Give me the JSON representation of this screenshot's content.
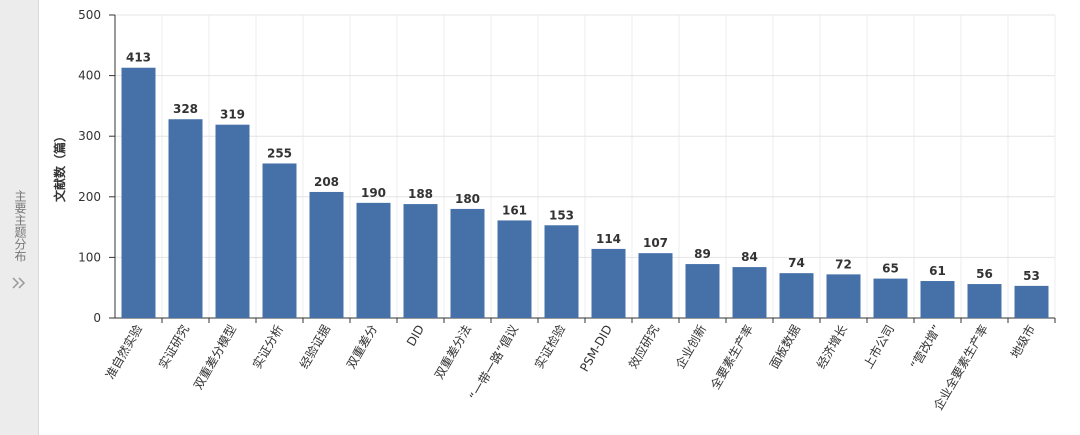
{
  "sidebar": {
    "label": "主要主题分布"
  },
  "chart_data": {
    "type": "bar",
    "ylabel": "文献数（篇）",
    "categories": [
      "准自然实验",
      "实证研究",
      "双重差分模型",
      "实证分析",
      "经验证据",
      "双重差分",
      "DID",
      "双重差分法",
      "“一带一路”倡议",
      "实证检验",
      "PSM-DID",
      "效应研究",
      "企业创新",
      "全要素生产率",
      "面板数据",
      "经济增长",
      "上市公司",
      "“营改增”",
      "企业全要素生产率",
      "地级市"
    ],
    "values": [
      413,
      328,
      319,
      255,
      208,
      190,
      188,
      180,
      161,
      153,
      114,
      107,
      89,
      84,
      74,
      72,
      65,
      61,
      56,
      53
    ],
    "color": "#4571a8",
    "ylim": [
      0,
      500
    ],
    "yticks": [
      0,
      100,
      200,
      300,
      400,
      500
    ],
    "grid": true
  }
}
